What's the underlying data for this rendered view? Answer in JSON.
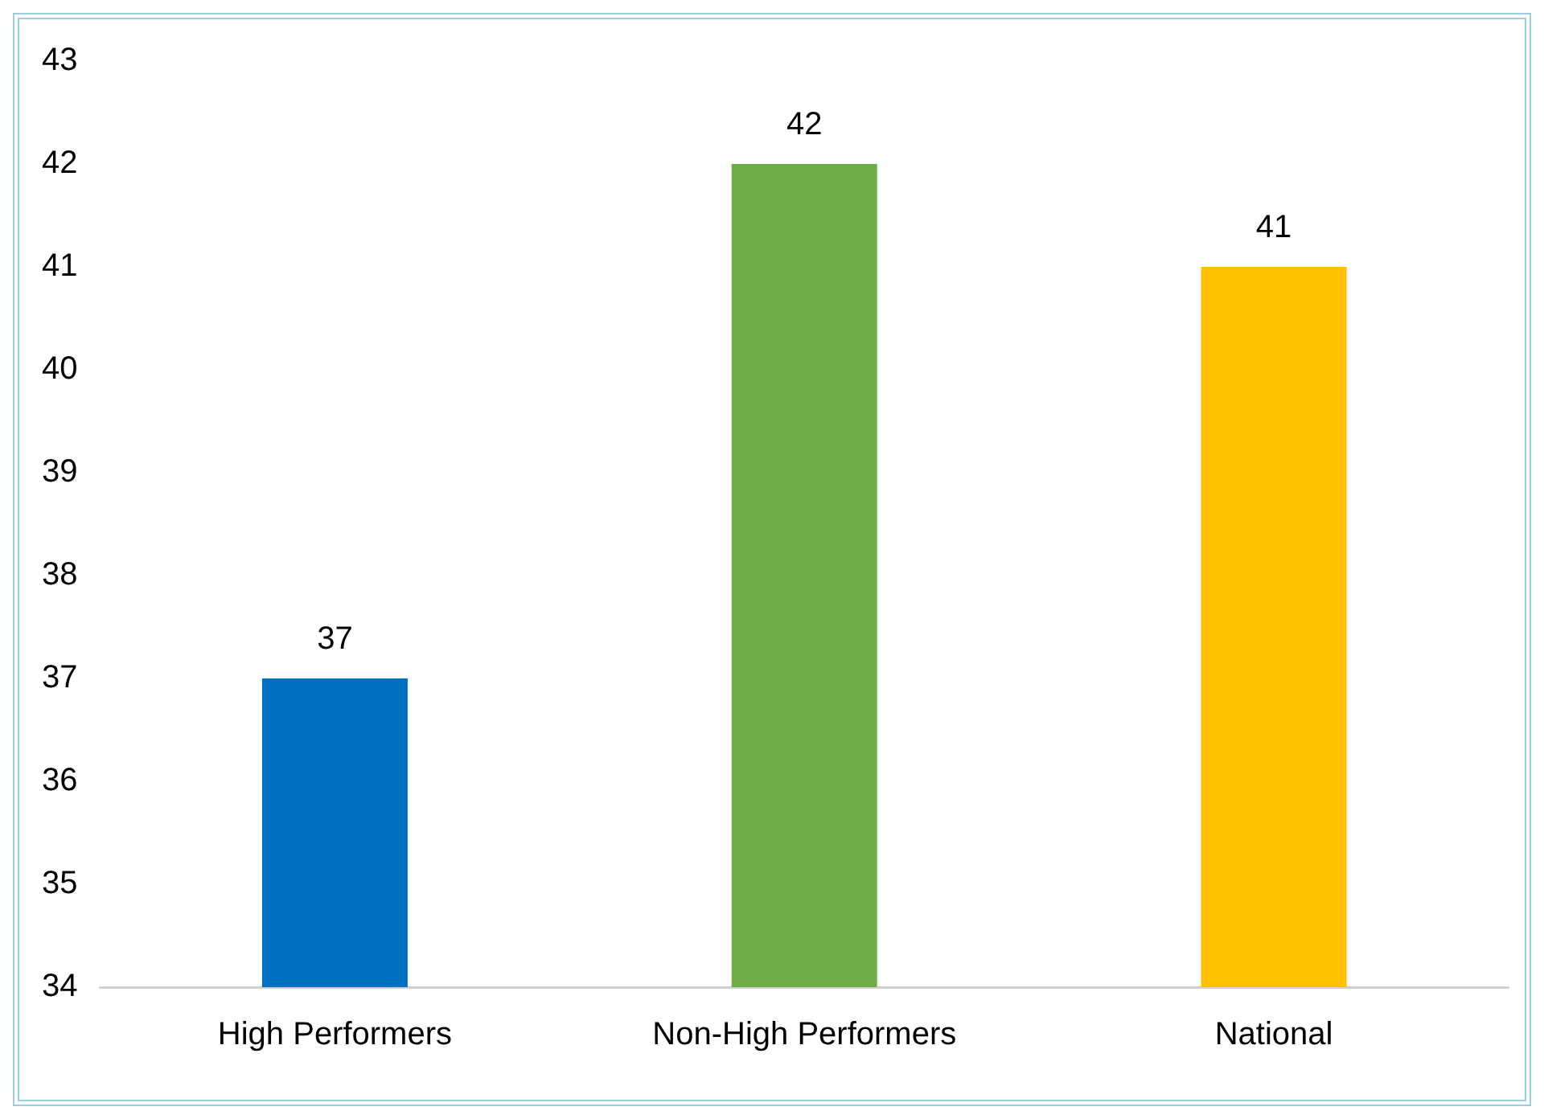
{
  "chart_data": {
    "type": "bar",
    "categories": [
      "High Performers",
      "Non-High Performers",
      "National"
    ],
    "values": [
      37,
      42,
      41
    ],
    "colors": [
      "#0070c0",
      "#70ad47",
      "#ffc000"
    ],
    "ylim": [
      34,
      43
    ],
    "yticks": [
      34,
      35,
      36,
      37,
      38,
      39,
      40,
      41,
      42,
      43
    ],
    "grid": false,
    "legend": false,
    "data_labels": true
  }
}
